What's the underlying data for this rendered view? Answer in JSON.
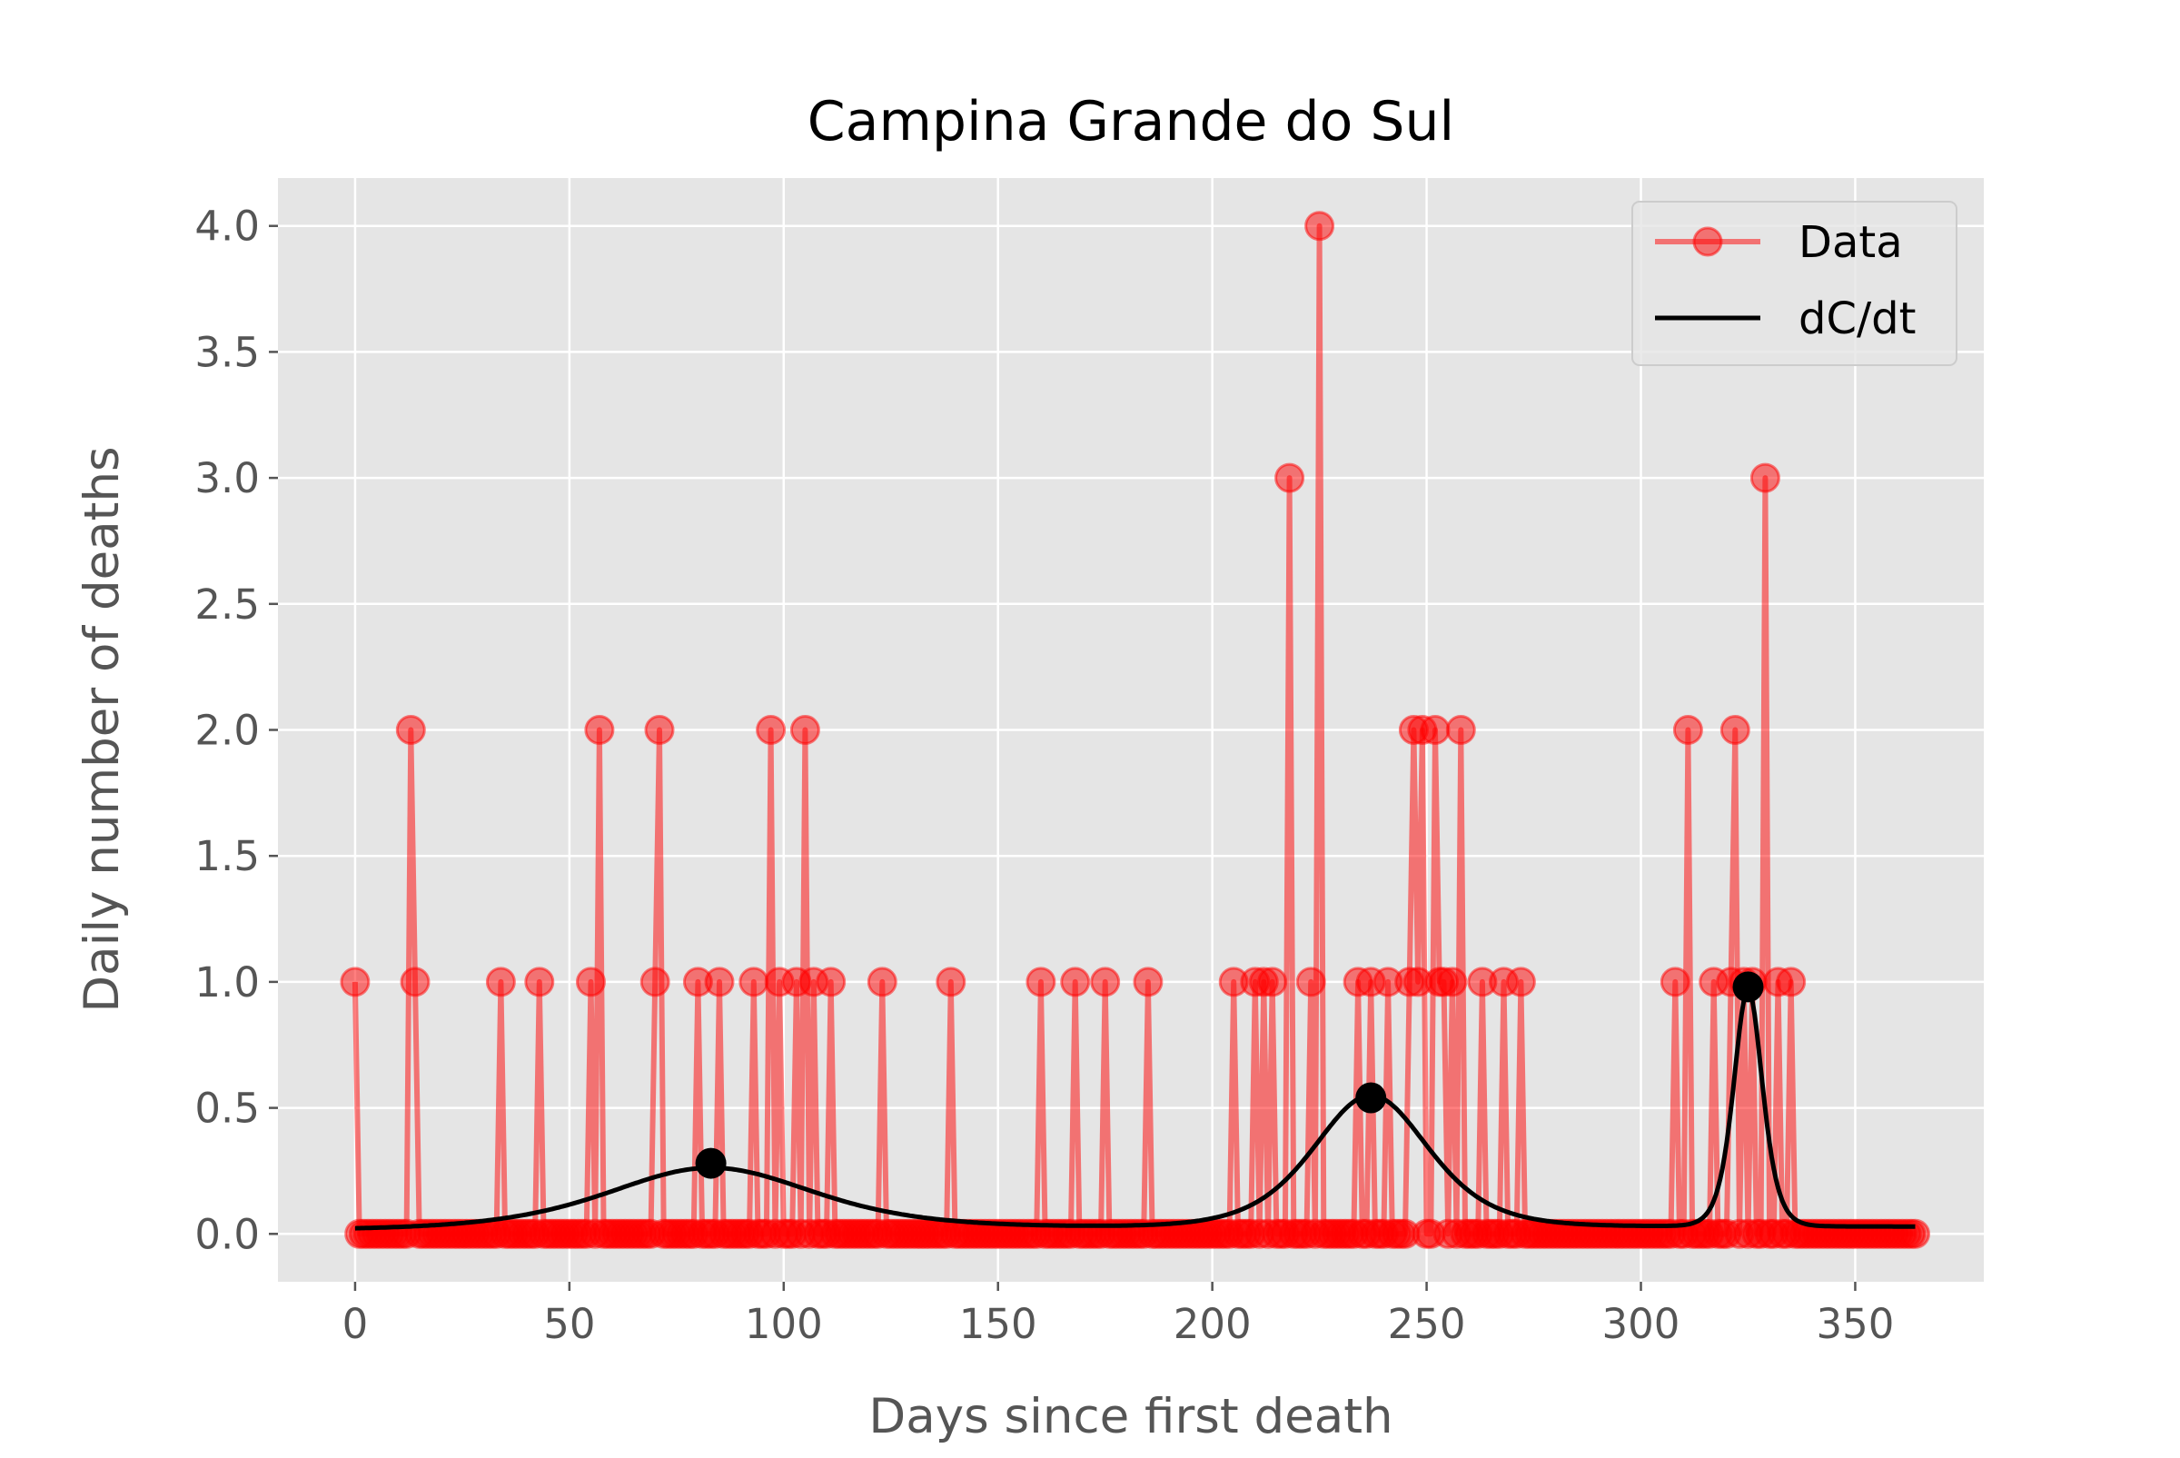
{
  "chart_data": {
    "type": "line",
    "title": "Campina Grande do Sul",
    "xlabel": "Days since first death",
    "ylabel": "Daily number of deaths",
    "xlim": [
      -18,
      380
    ],
    "ylim": [
      -0.19,
      4.19
    ],
    "xticks": [
      0,
      50,
      100,
      150,
      200,
      250,
      300,
      350
    ],
    "yticks": [
      0.0,
      0.5,
      1.0,
      1.5,
      2.0,
      2.5,
      3.0,
      3.5,
      4.0
    ],
    "xtick_labels": [
      "0",
      "50",
      "100",
      "150",
      "200",
      "250",
      "300",
      "350"
    ],
    "ytick_labels": [
      "0.0",
      "0.5",
      "1.0",
      "1.5",
      "2.0",
      "2.5",
      "3.0",
      "3.5",
      "4.0"
    ],
    "grid": true,
    "legend_position": "top-right",
    "colors": {
      "background": "#e5e5e5",
      "grid": "#ffffff",
      "data": "#ff0000",
      "fit": "#000000"
    },
    "series": [
      {
        "name": "Data",
        "style": "line-markers",
        "x_range": [
          0,
          364
        ],
        "nonzero_points": [
          [
            0,
            1
          ],
          [
            13,
            2
          ],
          [
            14,
            1
          ],
          [
            34,
            1
          ],
          [
            43,
            1
          ],
          [
            55,
            1
          ],
          [
            57,
            2
          ],
          [
            70,
            1
          ],
          [
            71,
            2
          ],
          [
            80,
            1
          ],
          [
            85,
            1
          ],
          [
            93,
            1
          ],
          [
            97,
            2
          ],
          [
            99,
            1
          ],
          [
            103,
            1
          ],
          [
            105,
            2
          ],
          [
            107,
            1
          ],
          [
            111,
            1
          ],
          [
            123,
            1
          ],
          [
            139,
            1
          ],
          [
            160,
            1
          ],
          [
            168,
            1
          ],
          [
            175,
            1
          ],
          [
            185,
            1
          ],
          [
            205,
            1
          ],
          [
            210,
            1
          ],
          [
            212,
            1
          ],
          [
            214,
            1
          ],
          [
            218,
            3
          ],
          [
            223,
            1
          ],
          [
            225,
            4
          ],
          [
            234,
            1
          ],
          [
            237,
            1
          ],
          [
            241,
            1
          ],
          [
            246,
            1
          ],
          [
            247,
            2
          ],
          [
            248,
            1
          ],
          [
            249,
            2
          ],
          [
            252,
            2
          ],
          [
            253,
            1
          ],
          [
            254,
            1
          ],
          [
            256,
            1
          ],
          [
            258,
            2
          ],
          [
            263,
            1
          ],
          [
            268,
            1
          ],
          [
            272,
            1
          ],
          [
            308,
            1
          ],
          [
            311,
            2
          ],
          [
            317,
            1
          ],
          [
            321,
            1
          ],
          [
            322,
            2
          ],
          [
            324,
            1
          ],
          [
            326,
            1
          ],
          [
            329,
            3
          ],
          [
            332,
            1
          ],
          [
            335,
            1
          ]
        ]
      },
      {
        "name": "dC/dt",
        "style": "line",
        "x_range": [
          0,
          364
        ],
        "waves": [
          {
            "peak_day": 83,
            "peak_value": 0.24,
            "width_days": 32
          },
          {
            "peak_day": 237,
            "peak_value": 0.52,
            "width_days": 18
          },
          {
            "peak_day": 325,
            "peak_value": 0.94,
            "width_days": 4.5
          }
        ],
        "baseline": 0.03,
        "peak_markers": [
          [
            83,
            0.28
          ],
          [
            237,
            0.54
          ],
          [
            325,
            0.98
          ]
        ]
      }
    ]
  }
}
